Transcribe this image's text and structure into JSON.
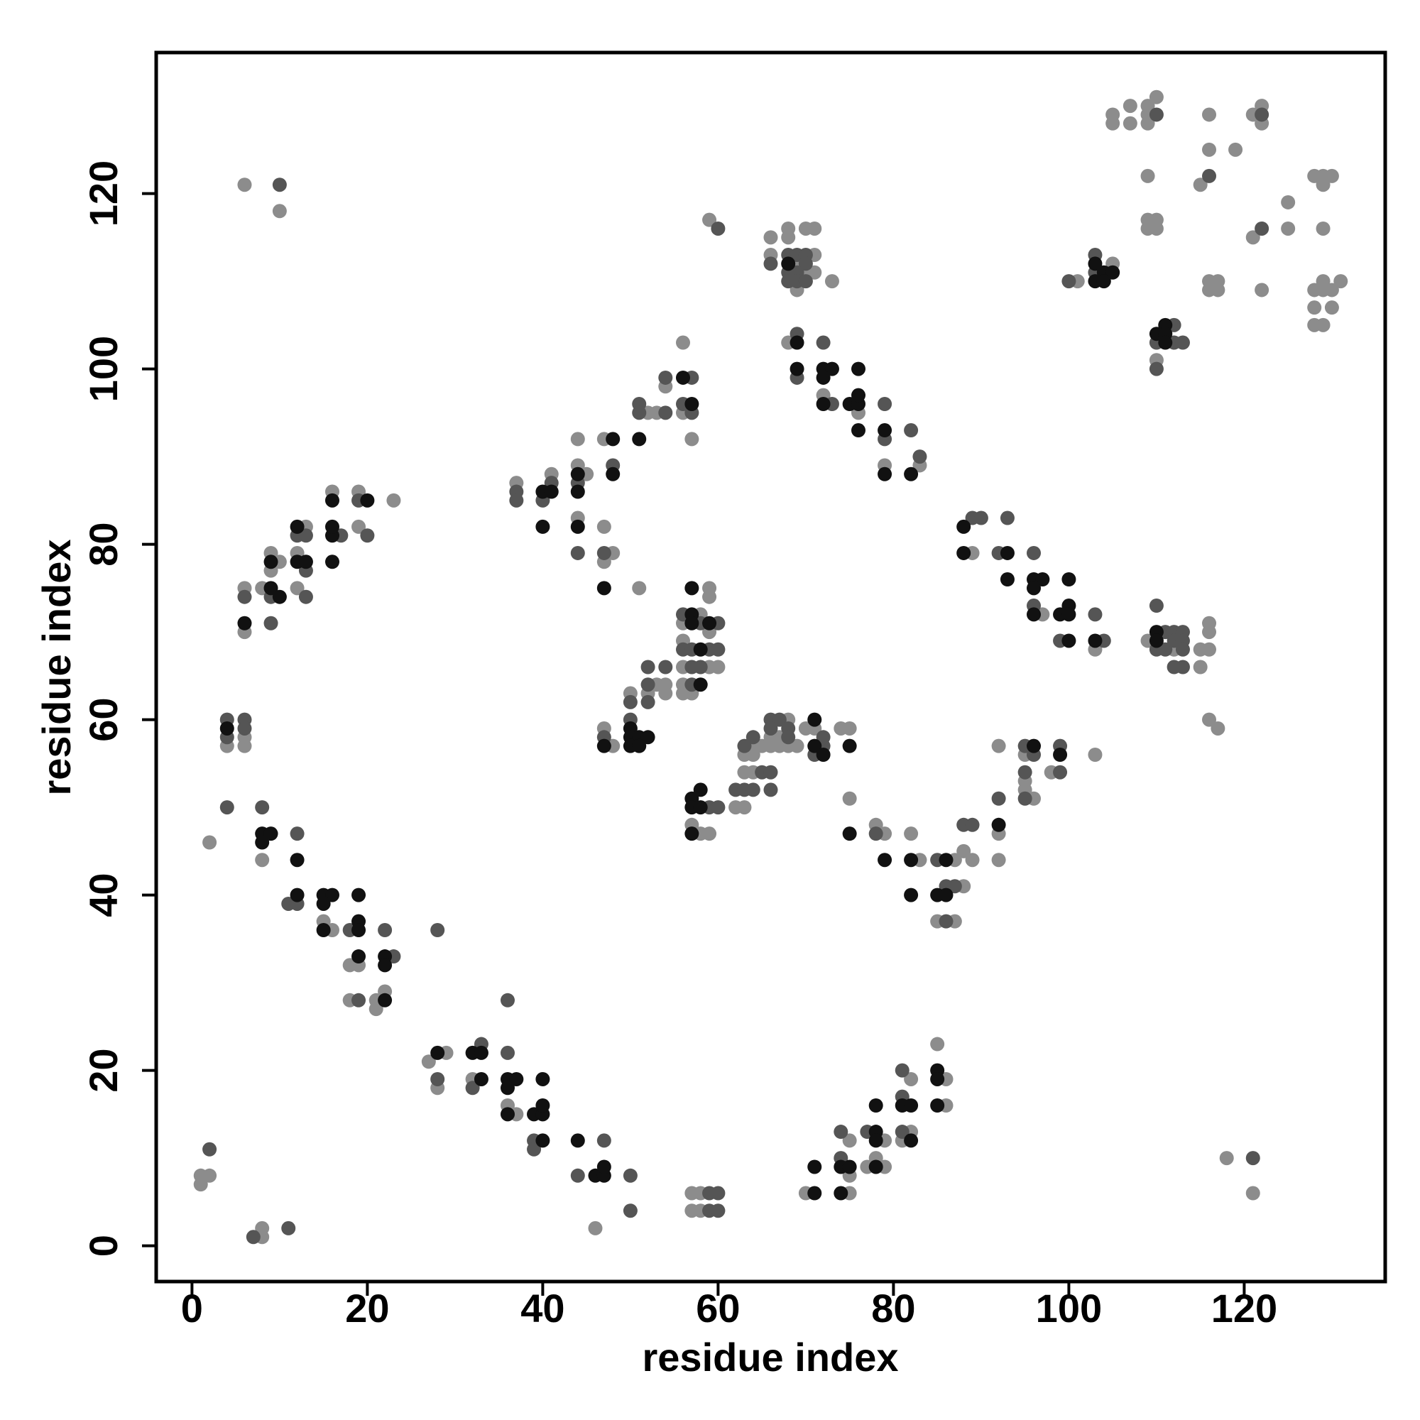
{
  "chart_data": {
    "type": "scatter",
    "xlabel": "residue index",
    "ylabel": "residue index",
    "xlim": [
      -4.08,
      136.08
    ],
    "ylim": [
      -4.08,
      136.08
    ],
    "xticks": [
      0,
      20,
      40,
      60,
      80,
      100,
      120
    ],
    "yticks": [
      0,
      20,
      40,
      60,
      80,
      100,
      120
    ],
    "series": [
      {
        "color": "#8c8c8c",
        "x": [
          1,
          1,
          2,
          2,
          8,
          8,
          6,
          10,
          4,
          6,
          6,
          8,
          15,
          16,
          18,
          19,
          18,
          21,
          21,
          22,
          6,
          6,
          8,
          9,
          9,
          10,
          12,
          12,
          13,
          16,
          19,
          19,
          23,
          27,
          29,
          28,
          32,
          36,
          37,
          46,
          57,
          58,
          57,
          58,
          70,
          75,
          75,
          75,
          79,
          78,
          77,
          79,
          82,
          82,
          81,
          85,
          86,
          86,
          37,
          41,
          44,
          44,
          45,
          44,
          47,
          47,
          48,
          47,
          52,
          53,
          51,
          54,
          56,
          57,
          56,
          59,
          47,
          48,
          50,
          53,
          54,
          52,
          54,
          58,
          56,
          56,
          56,
          59,
          60,
          56,
          56,
          57,
          59,
          59,
          59,
          57,
          58,
          59,
          62,
          63,
          63,
          64,
          63,
          64,
          64,
          65,
          66,
          67,
          66,
          67,
          68,
          68,
          69,
          70,
          71,
          74,
          75,
          75,
          66,
          66,
          68,
          68,
          69,
          70,
          69,
          70,
          71,
          71,
          71,
          73,
          68,
          72,
          76,
          79,
          83,
          78,
          79,
          82,
          83,
          87,
          88,
          85,
          87,
          88,
          89,
          92,
          92,
          92,
          95,
          95,
          95,
          96,
          98,
          103,
          89,
          97,
          103,
          109,
          112,
          115,
          115,
          116,
          116,
          116,
          116,
          117,
          101,
          105,
          110,
          105,
          105,
          107,
          107,
          109,
          109,
          109,
          110,
          109,
          109,
          110,
          109,
          110,
          116,
          116,
          115,
          119,
          116,
          117,
          116,
          117,
          121,
          122,
          122,
          125,
          125,
          121,
          122,
          128,
          129,
          130,
          129,
          129,
          128,
          129,
          129,
          130,
          131,
          128,
          130,
          128,
          129,
          118,
          121
        ],
        "values": [
          7,
          8,
          8,
          46,
          1,
          2,
          121,
          118,
          57,
          58,
          57,
          44,
          37,
          36,
          32,
          32,
          28,
          27,
          28,
          29,
          70,
          75,
          75,
          77,
          79,
          78,
          75,
          79,
          82,
          86,
          86,
          82,
          85,
          21,
          22,
          18,
          19,
          16,
          15,
          2,
          6,
          6,
          4,
          4,
          6,
          12,
          6,
          8,
          12,
          10,
          9,
          9,
          19,
          13,
          12,
          23,
          19,
          16,
          87,
          88,
          92,
          89,
          88,
          83,
          92,
          82,
          79,
          78,
          95,
          95,
          75,
          98,
          95,
          92,
          103,
          117,
          59,
          57,
          63,
          64,
          64,
          63,
          63,
          72,
          71,
          69,
          66,
          66,
          66,
          64,
          63,
          63,
          75,
          74,
          70,
          48,
          47,
          47,
          50,
          50,
          54,
          54,
          56,
          56,
          57,
          57,
          58,
          58,
          57,
          57,
          60,
          57,
          57,
          59,
          59,
          59,
          59,
          51,
          115,
          113,
          116,
          115,
          112,
          111,
          109,
          116,
          116,
          113,
          111,
          110,
          103,
          97,
          95,
          89,
          89,
          48,
          47,
          47,
          44,
          44,
          41,
          37,
          37,
          45,
          44,
          57,
          47,
          44,
          56,
          53,
          52,
          51,
          54,
          56,
          79,
          72,
          68,
          69,
          68,
          68,
          66,
          71,
          70,
          68,
          60,
          59,
          110,
          112,
          101,
          129,
          128,
          130,
          128,
          130,
          129,
          128,
          131,
          122,
          117,
          117,
          116,
          116,
          129,
          125,
          121,
          125,
          110,
          110,
          109,
          109,
          129,
          130,
          128,
          119,
          116,
          115,
          109,
          122,
          122,
          122,
          121,
          116,
          109,
          110,
          109,
          109,
          110,
          107,
          107,
          105,
          105,
          10,
          6
        ]
      },
      {
        "color": "#555555",
        "x": [
          2,
          7,
          11,
          10,
          4,
          4,
          6,
          6,
          4,
          8,
          12,
          11,
          12,
          18,
          22,
          23,
          19,
          28,
          6,
          9,
          9,
          13,
          12,
          13,
          13,
          17,
          19,
          20,
          28,
          33,
          32,
          36,
          36,
          39,
          39,
          44,
          47,
          50,
          50,
          59,
          60,
          59,
          60,
          74,
          74,
          77,
          81,
          81,
          81,
          37,
          37,
          40,
          41,
          44,
          44,
          48,
          47,
          51,
          51,
          54,
          54,
          57,
          56,
          57,
          60,
          47,
          50,
          50,
          52,
          52,
          52,
          54,
          56,
          58,
          60,
          56,
          57,
          59,
          60,
          57,
          58,
          57,
          59,
          60,
          62,
          63,
          64,
          65,
          63,
          64,
          66,
          67,
          66,
          68,
          68,
          66,
          66,
          72,
          71,
          72,
          66,
          68,
          69,
          70,
          70,
          68,
          69,
          68,
          69,
          70,
          69,
          69,
          72,
          73,
          79,
          79,
          82,
          83,
          78,
          85,
          86,
          87,
          86,
          88,
          89,
          92,
          95,
          96,
          95,
          95,
          99,
          99,
          89,
          90,
          92,
          93,
          96,
          96,
          99,
          103,
          104,
          110,
          110,
          111,
          111,
          112,
          112,
          113,
          113,
          113,
          112,
          113,
          100,
          103,
          103,
          110,
          112,
          112,
          113,
          110,
          110,
          116,
          122,
          122,
          121
        ],
        "values": [
          11,
          1,
          2,
          121,
          60,
          58,
          60,
          59,
          50,
          50,
          47,
          39,
          39,
          36,
          36,
          33,
          28,
          36,
          74,
          74,
          71,
          74,
          81,
          81,
          77,
          81,
          85,
          81,
          19,
          23,
          18,
          28,
          22,
          12,
          11,
          8,
          12,
          8,
          4,
          6,
          6,
          4,
          4,
          13,
          10,
          13,
          20,
          17,
          13,
          86,
          85,
          85,
          87,
          87,
          79,
          89,
          79,
          96,
          95,
          95,
          99,
          99,
          96,
          95,
          116,
          58,
          62,
          60,
          66,
          64,
          62,
          66,
          72,
          71,
          71,
          68,
          68,
          68,
          68,
          66,
          66,
          64,
          50,
          50,
          52,
          52,
          52,
          54,
          57,
          58,
          60,
          60,
          59,
          59,
          58,
          52,
          54,
          57,
          56,
          58,
          112,
          113,
          113,
          113,
          112,
          111,
          111,
          110,
          110,
          110,
          104,
          99,
          103,
          96,
          96,
          92,
          93,
          90,
          47,
          44,
          41,
          41,
          37,
          48,
          48,
          51,
          57,
          56,
          54,
          51,
          57,
          54,
          83,
          83,
          79,
          83,
          79,
          73,
          69,
          72,
          69,
          73,
          68,
          70,
          68,
          70,
          69,
          70,
          69,
          68,
          66,
          66,
          110,
          113,
          111,
          103,
          105,
          103,
          103,
          100,
          129,
          122,
          129,
          116,
          10
        ]
      },
      {
        "color": "#111111",
        "x": [
          4,
          8,
          9,
          8,
          12,
          12,
          15,
          16,
          15,
          15,
          19,
          19,
          19,
          19,
          22,
          22,
          22,
          6,
          9,
          10,
          9,
          12,
          13,
          12,
          16,
          16,
          16,
          16,
          20,
          28,
          32,
          33,
          33,
          36,
          37,
          36,
          36,
          40,
          39,
          40,
          40,
          40,
          44,
          46,
          47,
          47,
          71,
          71,
          74,
          75,
          74,
          78,
          78,
          78,
          78,
          81,
          82,
          82,
          85,
          85,
          85,
          40,
          41,
          40,
          44,
          44,
          44,
          48,
          48,
          47,
          51,
          56,
          57,
          47,
          50,
          50,
          51,
          52,
          50,
          51,
          57,
          57,
          59,
          58,
          58,
          57,
          57,
          58,
          57,
          58,
          57,
          71,
          71,
          72,
          75,
          75,
          68,
          69,
          69,
          72,
          73,
          72,
          72,
          75,
          76,
          76,
          76,
          76,
          79,
          79,
          82,
          79,
          82,
          82,
          86,
          85,
          86,
          92,
          96,
          99,
          88,
          88,
          93,
          93,
          96,
          97,
          96,
          96,
          99,
          100,
          100,
          100,
          100,
          103,
          110,
          110,
          103,
          104,
          105,
          103,
          104,
          110,
          111,
          111,
          111
        ],
        "values": [
          59,
          47,
          47,
          46,
          44,
          40,
          40,
          40,
          39,
          36,
          40,
          37,
          36,
          33,
          33,
          32,
          28,
          71,
          75,
          74,
          78,
          78,
          78,
          82,
          78,
          81,
          82,
          85,
          85,
          22,
          22,
          22,
          19,
          19,
          19,
          18,
          15,
          19,
          15,
          15,
          16,
          12,
          12,
          8,
          8,
          9,
          6,
          9,
          9,
          9,
          6,
          13,
          12,
          9,
          16,
          16,
          16,
          12,
          20,
          19,
          16,
          86,
          86,
          82,
          88,
          86,
          82,
          92,
          88,
          75,
          92,
          99,
          96,
          57,
          59,
          58,
          58,
          58,
          57,
          57,
          72,
          71,
          71,
          68,
          64,
          75,
          51,
          52,
          50,
          50,
          47,
          60,
          57,
          56,
          57,
          47,
          112,
          103,
          100,
          100,
          100,
          99,
          96,
          96,
          96,
          97,
          100,
          93,
          93,
          88,
          88,
          44,
          44,
          40,
          44,
          40,
          40,
          48,
          57,
          56,
          82,
          79,
          79,
          76,
          76,
          76,
          75,
          72,
          72,
          73,
          72,
          76,
          69,
          69,
          70,
          69,
          112,
          111,
          111,
          110,
          110,
          104,
          105,
          104,
          103
        ]
      }
    ]
  }
}
